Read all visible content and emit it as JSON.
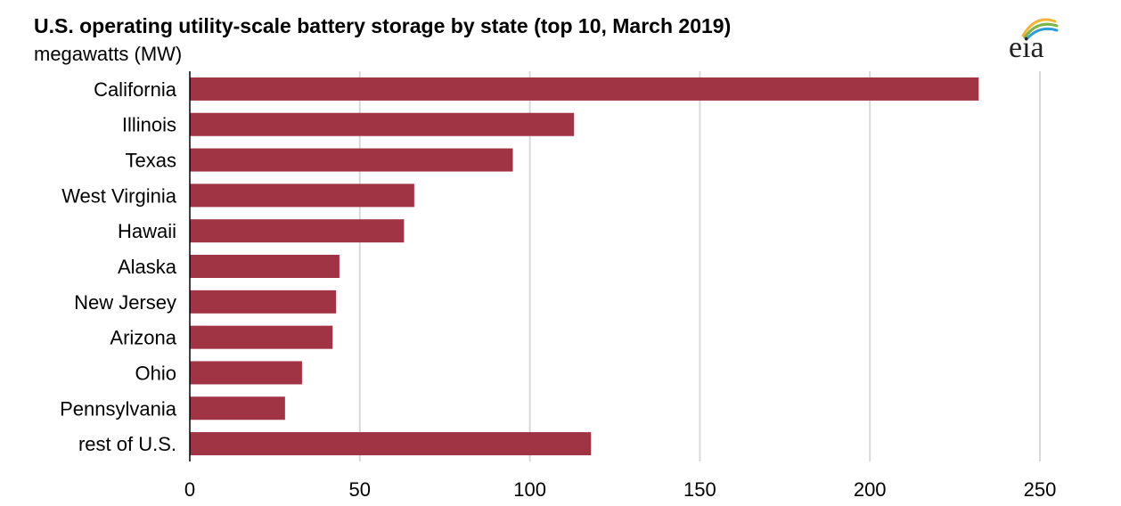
{
  "chart_data": {
    "type": "bar",
    "orientation": "horizontal",
    "title": "U.S. operating utility-scale battery storage by state (top 10, March 2019)",
    "subtitle": "megawatts (MW)",
    "categories": [
      "California",
      "Illinois",
      "Texas",
      "West Virginia",
      "Hawaii",
      "Alaska",
      "New Jersey",
      "Arizona",
      "Ohio",
      "Pennsylvania",
      "rest of U.S."
    ],
    "values": [
      232,
      113,
      95,
      66,
      63,
      44,
      43,
      42,
      33,
      28,
      118
    ],
    "xlim": [
      0,
      250
    ],
    "xticks": [
      0,
      50,
      100,
      150,
      200,
      250
    ],
    "xtick_labels": [
      "0",
      "50",
      "100",
      "150",
      "200",
      "250"
    ],
    "grid": "vertical",
    "bar_color": "#A03444",
    "grid_color": "#D9D9D9"
  },
  "logo": {
    "text": "eia",
    "icon": "eia-logo-icon",
    "colors": [
      "#F5B335",
      "#7AB648",
      "#2E9BD6"
    ]
  }
}
